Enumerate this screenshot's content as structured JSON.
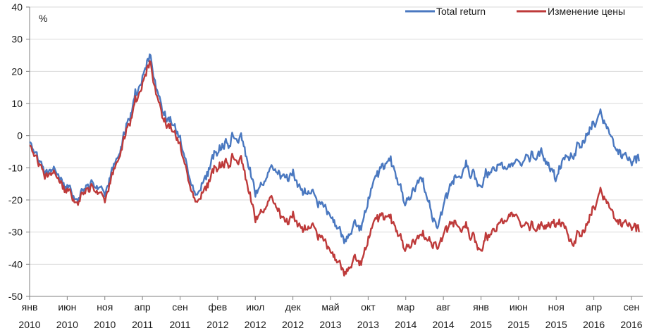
{
  "chart_data": {
    "type": "line",
    "unit_label": "%",
    "ylim": [
      -50,
      40
    ],
    "y_ticks": [
      40,
      30,
      20,
      10,
      0,
      -10,
      -20,
      -30,
      -40,
      -50
    ],
    "grid": true,
    "legend_position": "top-right",
    "x_ticks": [
      {
        "month": "янв",
        "year": "2010"
      },
      {
        "month": "июн",
        "year": "2010"
      },
      {
        "month": "ноя",
        "year": "2010"
      },
      {
        "month": "апр",
        "year": "2011"
      },
      {
        "month": "сен",
        "year": "2011"
      },
      {
        "month": "фев",
        "year": "2012"
      },
      {
        "month": "июл",
        "year": "2012"
      },
      {
        "month": "дек",
        "year": "2012"
      },
      {
        "month": "май",
        "year": "2013"
      },
      {
        "month": "окт",
        "year": "2013"
      },
      {
        "month": "мар",
        "year": "2014"
      },
      {
        "month": "авг",
        "year": "2014"
      },
      {
        "month": "янв",
        "year": "2015"
      },
      {
        "month": "июн",
        "year": "2015"
      },
      {
        "month": "ноя",
        "year": "2015"
      },
      {
        "month": "апр",
        "year": "2016"
      },
      {
        "month": "сен",
        "year": "2016"
      }
    ],
    "x": [
      "2010-01",
      "2010-03",
      "2010-05",
      "2010-07",
      "2010-09",
      "2010-11",
      "2011-01",
      "2011-03",
      "2011-05",
      "2011-07",
      "2011-09",
      "2011-11",
      "2012-01",
      "2012-03",
      "2012-05",
      "2012-07",
      "2012-09",
      "2012-11",
      "2013-01",
      "2013-03",
      "2013-05",
      "2013-07",
      "2013-09",
      "2013-11",
      "2014-01",
      "2014-03",
      "2014-05",
      "2014-07",
      "2014-09",
      "2014-11",
      "2015-01",
      "2015-03",
      "2015-05",
      "2015-07",
      "2015-09",
      "2015-11",
      "2016-01",
      "2016-03",
      "2016-05",
      "2016-07",
      "2016-09",
      "2016-10"
    ],
    "series": [
      {
        "name": "Total return",
        "color": "#4a78c0",
        "values": [
          -2,
          -11,
          -14,
          -20,
          -16,
          -16,
          -5,
          12,
          24,
          6,
          0,
          -20,
          -8,
          -3,
          2,
          -18,
          -13,
          -10,
          -16,
          -20,
          -24,
          -34,
          -27,
          -14,
          -9,
          -22,
          -12,
          -27,
          -16,
          -11,
          -14,
          -8,
          -10,
          -7,
          -5,
          -12,
          -7,
          -2,
          6,
          -6,
          -9,
          -8
        ],
        "values_note": ""
      },
      {
        "name": "Изменение цены",
        "color": "#be3a3a",
        "values": [
          -3,
          -12,
          -15,
          -21,
          -17,
          -18,
          -6,
          10,
          22,
          4,
          -2,
          -22,
          -12,
          -9,
          -5,
          -26,
          -22,
          -24,
          -28,
          -30,
          -35,
          -44,
          -38,
          -27,
          -27,
          -36,
          -30,
          -33,
          -28,
          -30,
          -34,
          -27,
          -25,
          -28,
          -28,
          -26,
          -34,
          -30,
          -18,
          -28,
          -29,
          -30
        ]
      }
    ]
  }
}
